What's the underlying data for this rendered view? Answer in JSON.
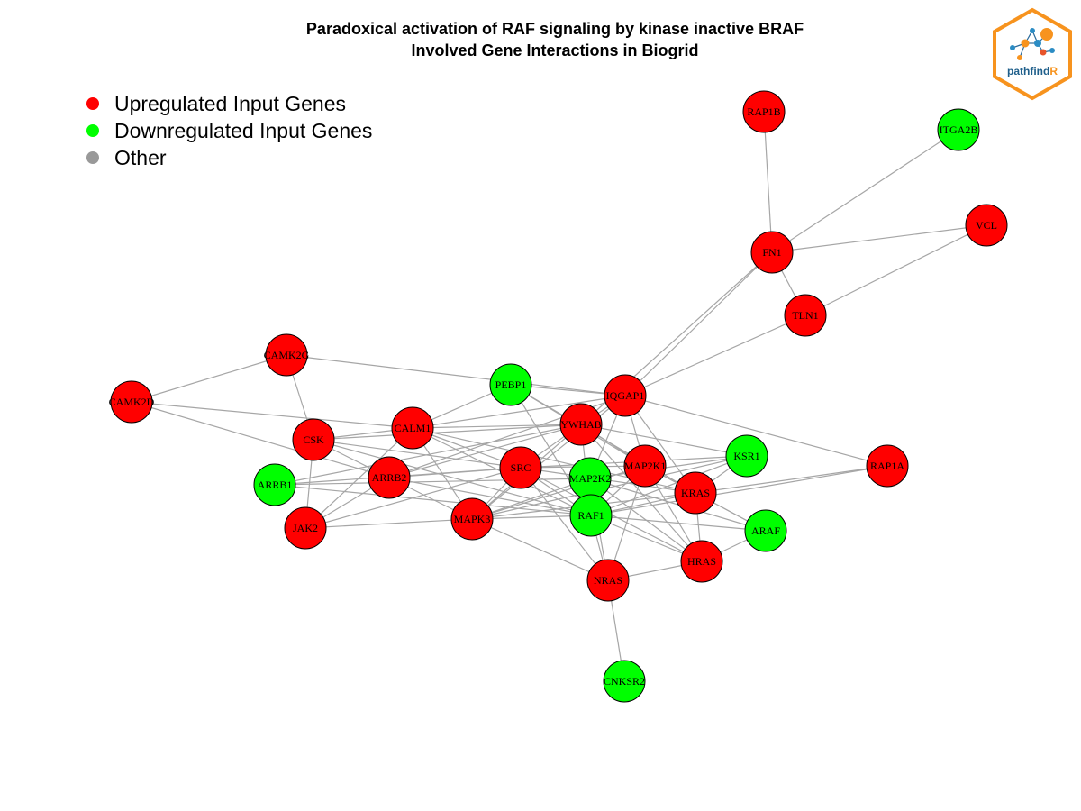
{
  "title": {
    "line1": "Paradoxical activation of RAF signaling by kinase inactive BRAF",
    "line2": "Involved Gene Interactions in Biogrid"
  },
  "legend": {
    "items": [
      {
        "label": "Upregulated Input Genes",
        "color": "#ff0000"
      },
      {
        "label": "Downregulated Input Genes",
        "color": "#00ff00"
      },
      {
        "label": "Other",
        "color": "#999999"
      }
    ]
  },
  "logo": {
    "text_main": "pathfind",
    "text_accent": "R",
    "frame_color": "#f7931e",
    "accent_color": "#f7931e",
    "text_color": "#1f5f8b"
  },
  "colors": {
    "up": "#ff0000",
    "down": "#00ff00",
    "edge": "#a6a6a6"
  },
  "nodes": [
    {
      "id": "RAP1B",
      "label": "RAP1B",
      "status": "up"
    },
    {
      "id": "ITGA2B",
      "label": "ITGA2B",
      "status": "down"
    },
    {
      "id": "VCL",
      "label": "VCL",
      "status": "up"
    },
    {
      "id": "FN1",
      "label": "FN1",
      "status": "up"
    },
    {
      "id": "TLN1",
      "label": "TLN1",
      "status": "up"
    },
    {
      "id": "CAMK2G",
      "label": "CAMK2G",
      "status": "up"
    },
    {
      "id": "CAMK2D",
      "label": "CAMK2D",
      "status": "up"
    },
    {
      "id": "PEBP1",
      "label": "PEBP1",
      "status": "down"
    },
    {
      "id": "IQGAP1",
      "label": "IQGAP1",
      "status": "up"
    },
    {
      "id": "CALM1",
      "label": "CALM1",
      "status": "up"
    },
    {
      "id": "YWHAB",
      "label": "YWHAB",
      "status": "up"
    },
    {
      "id": "CSK",
      "label": "CSK",
      "status": "up"
    },
    {
      "id": "KSR1",
      "label": "KSR1",
      "status": "down"
    },
    {
      "id": "RAP1A",
      "label": "RAP1A",
      "status": "up"
    },
    {
      "id": "MAP2K1",
      "label": "MAP2K1",
      "status": "up"
    },
    {
      "id": "SRC",
      "label": "SRC",
      "status": "up"
    },
    {
      "id": "ARRB2",
      "label": "ARRB2",
      "status": "up"
    },
    {
      "id": "MAP2K2",
      "label": "MAP2K2",
      "status": "down"
    },
    {
      "id": "ARRB1",
      "label": "ARRB1",
      "status": "down"
    },
    {
      "id": "KRAS",
      "label": "KRAS",
      "status": "up"
    },
    {
      "id": "RAF1",
      "label": "RAF1",
      "status": "down"
    },
    {
      "id": "MAPK3",
      "label": "MAPK3",
      "status": "up"
    },
    {
      "id": "JAK2",
      "label": "JAK2",
      "status": "up"
    },
    {
      "id": "ARAF",
      "label": "ARAF",
      "status": "down"
    },
    {
      "id": "HRAS",
      "label": "HRAS",
      "status": "up"
    },
    {
      "id": "NRAS",
      "label": "NRAS",
      "status": "up"
    },
    {
      "id": "CNKSR2",
      "label": "CNKSR2",
      "status": "down"
    }
  ],
  "edges": [
    [
      "RAP1B",
      "FN1"
    ],
    [
      "ITGA2B",
      "FN1"
    ],
    [
      "VCL",
      "FN1"
    ],
    [
      "VCL",
      "TLN1"
    ],
    [
      "FN1",
      "TLN1"
    ],
    [
      "FN1",
      "IQGAP1"
    ],
    [
      "FN1",
      "YWHAB"
    ],
    [
      "TLN1",
      "IQGAP1"
    ],
    [
      "CAMK2G",
      "CAMK2D"
    ],
    [
      "CAMK2G",
      "CSK"
    ],
    [
      "CAMK2G",
      "IQGAP1"
    ],
    [
      "CAMK2D",
      "CALM1"
    ],
    [
      "CAMK2D",
      "ARRB2"
    ],
    [
      "PEBP1",
      "CALM1"
    ],
    [
      "PEBP1",
      "MAP2K1"
    ],
    [
      "PEBP1",
      "RAF1"
    ],
    [
      "PEBP1",
      "KRAS"
    ],
    [
      "PEBP1",
      "IQGAP1"
    ],
    [
      "IQGAP1",
      "CALM1"
    ],
    [
      "IQGAP1",
      "YWHAB"
    ],
    [
      "IQGAP1",
      "MAP2K1"
    ],
    [
      "IQGAP1",
      "KRAS"
    ],
    [
      "IQGAP1",
      "RAP1A"
    ],
    [
      "IQGAP1",
      "MAPK3"
    ],
    [
      "IQGAP1",
      "ARRB2"
    ],
    [
      "IQGAP1",
      "MAP2K2"
    ],
    [
      "CALM1",
      "CSK"
    ],
    [
      "CALM1",
      "SRC"
    ],
    [
      "CALM1",
      "YWHAB"
    ],
    [
      "CALM1",
      "KRAS"
    ],
    [
      "CALM1",
      "RAF1"
    ],
    [
      "CALM1",
      "MAPK3"
    ],
    [
      "CALM1",
      "JAK2"
    ],
    [
      "YWHAB",
      "SRC"
    ],
    [
      "YWHAB",
      "RAF1"
    ],
    [
      "YWHAB",
      "ARRB2"
    ],
    [
      "YWHAB",
      "KSR1"
    ],
    [
      "YWHAB",
      "MAPK3"
    ],
    [
      "YWHAB",
      "HRAS"
    ],
    [
      "YWHAB",
      "MAP2K1"
    ],
    [
      "YWHAB",
      "ARRB1"
    ],
    [
      "CSK",
      "SRC"
    ],
    [
      "CSK",
      "JAK2"
    ],
    [
      "CSK",
      "ARRB2"
    ],
    [
      "CSK",
      "RAF1"
    ],
    [
      "CSK",
      "YWHAB"
    ],
    [
      "KSR1",
      "MAP2K2"
    ],
    [
      "KSR1",
      "RAF1"
    ],
    [
      "KSR1",
      "MAPK3"
    ],
    [
      "KSR1",
      "KRAS"
    ],
    [
      "KSR1",
      "SRC"
    ],
    [
      "RAP1A",
      "RAF1"
    ],
    [
      "RAP1A",
      "KRAS"
    ],
    [
      "MAP2K1",
      "RAF1"
    ],
    [
      "MAP2K1",
      "MAPK3"
    ],
    [
      "MAP2K1",
      "KRAS"
    ],
    [
      "MAP2K1",
      "HRAS"
    ],
    [
      "MAP2K1",
      "NRAS"
    ],
    [
      "MAP2K1",
      "ARAF"
    ],
    [
      "MAP2K1",
      "SRC"
    ],
    [
      "SRC",
      "ARRB1"
    ],
    [
      "SRC",
      "JAK2"
    ],
    [
      "SRC",
      "MAPK3"
    ],
    [
      "SRC",
      "RAF1"
    ],
    [
      "SRC",
      "HRAS"
    ],
    [
      "SRC",
      "NRAS"
    ],
    [
      "SRC",
      "KRAS"
    ],
    [
      "ARRB2",
      "MAPK3"
    ],
    [
      "ARRB2",
      "SRC"
    ],
    [
      "ARRB2",
      "RAF1"
    ],
    [
      "ARRB2",
      "JAK2"
    ],
    [
      "MAP2K2",
      "RAF1"
    ],
    [
      "MAP2K2",
      "MAPK3"
    ],
    [
      "MAP2K2",
      "ARRB1"
    ],
    [
      "MAP2K2",
      "ARAF"
    ],
    [
      "MAP2K2",
      "HRAS"
    ],
    [
      "KRAS",
      "RAF1"
    ],
    [
      "KRAS",
      "MAPK3"
    ],
    [
      "KRAS",
      "HRAS"
    ],
    [
      "KRAS",
      "ARAF"
    ],
    [
      "RAF1",
      "ARAF"
    ],
    [
      "RAF1",
      "HRAS"
    ],
    [
      "RAF1",
      "NRAS"
    ],
    [
      "RAF1",
      "MAPK3"
    ],
    [
      "RAF1",
      "ARRB1"
    ],
    [
      "MAPK3",
      "JAK2"
    ],
    [
      "MAPK3",
      "NRAS"
    ],
    [
      "HRAS",
      "NRAS"
    ],
    [
      "HRAS",
      "ARAF"
    ],
    [
      "NRAS",
      "CNKSR2"
    ],
    [
      "NRAS",
      "MAP2K2"
    ]
  ]
}
